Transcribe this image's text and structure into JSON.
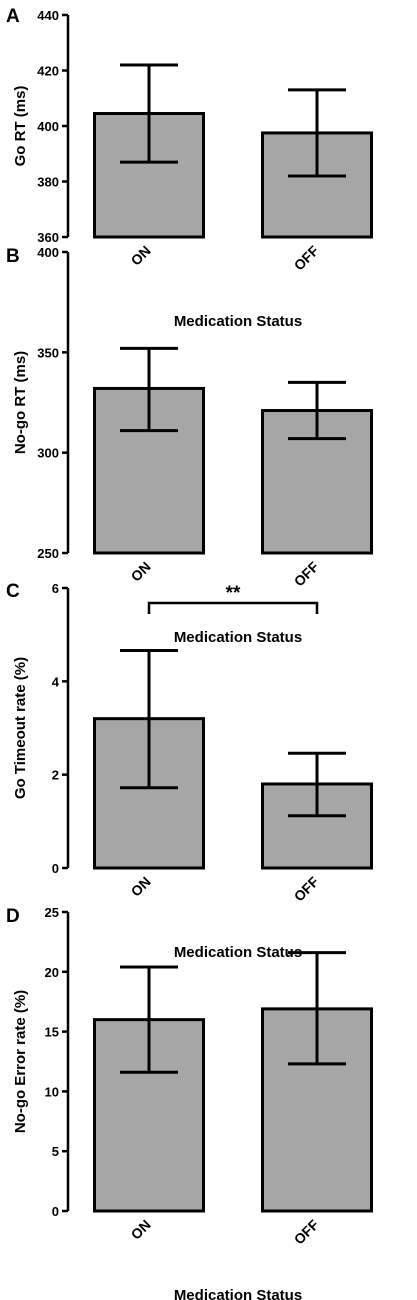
{
  "colors": {
    "bar_fill": "#a6a6a6",
    "stroke": "#000000"
  },
  "chart_data": [
    {
      "type": "bar",
      "panel": "A",
      "categories": [
        "ON",
        "OFF"
      ],
      "values": [
        404.5,
        397.5
      ],
      "error_low": [
        387,
        382
      ],
      "error_high": [
        422,
        413
      ],
      "xlabel": "Medication Status",
      "ylabel": "Go RT (ms)",
      "ylim": [
        360,
        440
      ],
      "yticks": [
        360,
        380,
        400,
        420,
        440
      ],
      "grid": false
    },
    {
      "type": "bar",
      "panel": "B",
      "categories": [
        "ON",
        "OFF"
      ],
      "values": [
        332,
        321
      ],
      "error_low": [
        311,
        307
      ],
      "error_high": [
        352,
        335
      ],
      "xlabel": "Medication Status",
      "ylabel": "No-go RT (ms)",
      "ylim": [
        250,
        400
      ],
      "yticks": [
        250,
        300,
        350,
        400
      ],
      "grid": false
    },
    {
      "type": "bar",
      "panel": "C",
      "categories": [
        "ON",
        "OFF"
      ],
      "values": [
        3.2,
        1.8
      ],
      "error_low": [
        1.72,
        1.12
      ],
      "error_high": [
        4.66,
        2.46
      ],
      "xlabel": "Medication Status",
      "ylabel": "Go Timeout rate (%)",
      "ylim": [
        0,
        6
      ],
      "yticks": [
        0,
        2,
        4,
        6
      ],
      "annotation": "**",
      "grid": false
    },
    {
      "type": "bar",
      "panel": "D",
      "categories": [
        "ON",
        "OFF"
      ],
      "values": [
        16,
        16.9
      ],
      "error_low": [
        11.6,
        12.3
      ],
      "error_high": [
        20.4,
        21.6
      ],
      "xlabel": "Medication Status",
      "ylabel": "No-go Error rate (%)",
      "ylim": [
        0,
        25
      ],
      "yticks": [
        0,
        5,
        10,
        15,
        20,
        25
      ],
      "grid": false
    }
  ]
}
